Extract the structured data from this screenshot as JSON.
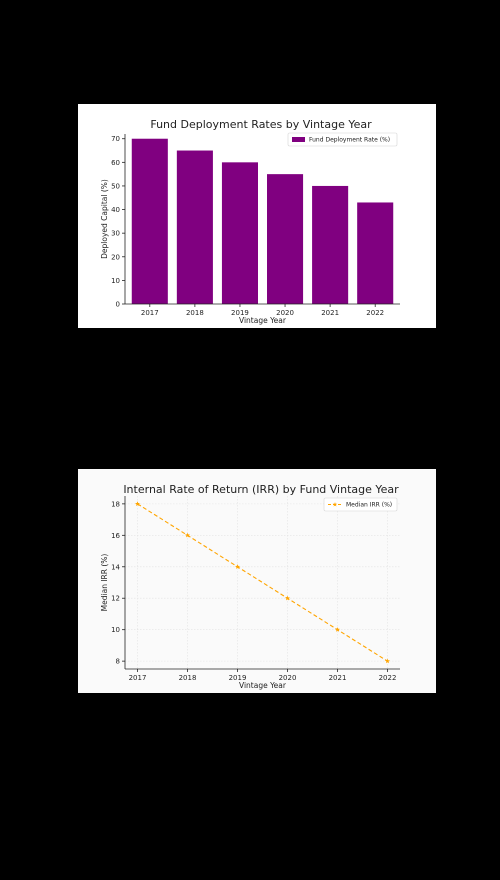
{
  "colors": {
    "page_background": "#000000",
    "panel_background": "#ffffff",
    "plot_background_line": "#fafafa"
  },
  "chart_data": [
    {
      "type": "bar",
      "title": "Fund Deployment Rates by Vintage Year",
      "xlabel": "Vintage Year",
      "ylabel": "Deployed Capital (%)",
      "categories": [
        "2017",
        "2018",
        "2019",
        "2020",
        "2021",
        "2022"
      ],
      "series": [
        {
          "name": "Fund Deployment Rate (%)",
          "values": [
            70,
            65,
            60,
            55,
            50,
            43
          ],
          "color": "#800080"
        }
      ],
      "ylim": [
        0,
        72
      ],
      "yticks": [
        0,
        10,
        20,
        30,
        40,
        50,
        60,
        70
      ],
      "grid": false,
      "legend": "top-right"
    },
    {
      "type": "line",
      "title": "Internal Rate of Return (IRR) by Fund Vintage Year",
      "xlabel": "Vintage Year",
      "ylabel": "Median IRR (%)",
      "x": [
        2017,
        2018,
        2019,
        2020,
        2021,
        2022
      ],
      "series": [
        {
          "name": "Median IRR (%)",
          "values": [
            18,
            16,
            14,
            12,
            10,
            8
          ],
          "color": "#ffa500",
          "line_style": "dashed",
          "marker": "star"
        }
      ],
      "xlim": [
        2016.75,
        2022.25
      ],
      "ylim": [
        7.5,
        18.5
      ],
      "yticks": [
        8,
        10,
        12,
        14,
        16,
        18
      ],
      "grid": true,
      "legend": "top-right"
    }
  ]
}
